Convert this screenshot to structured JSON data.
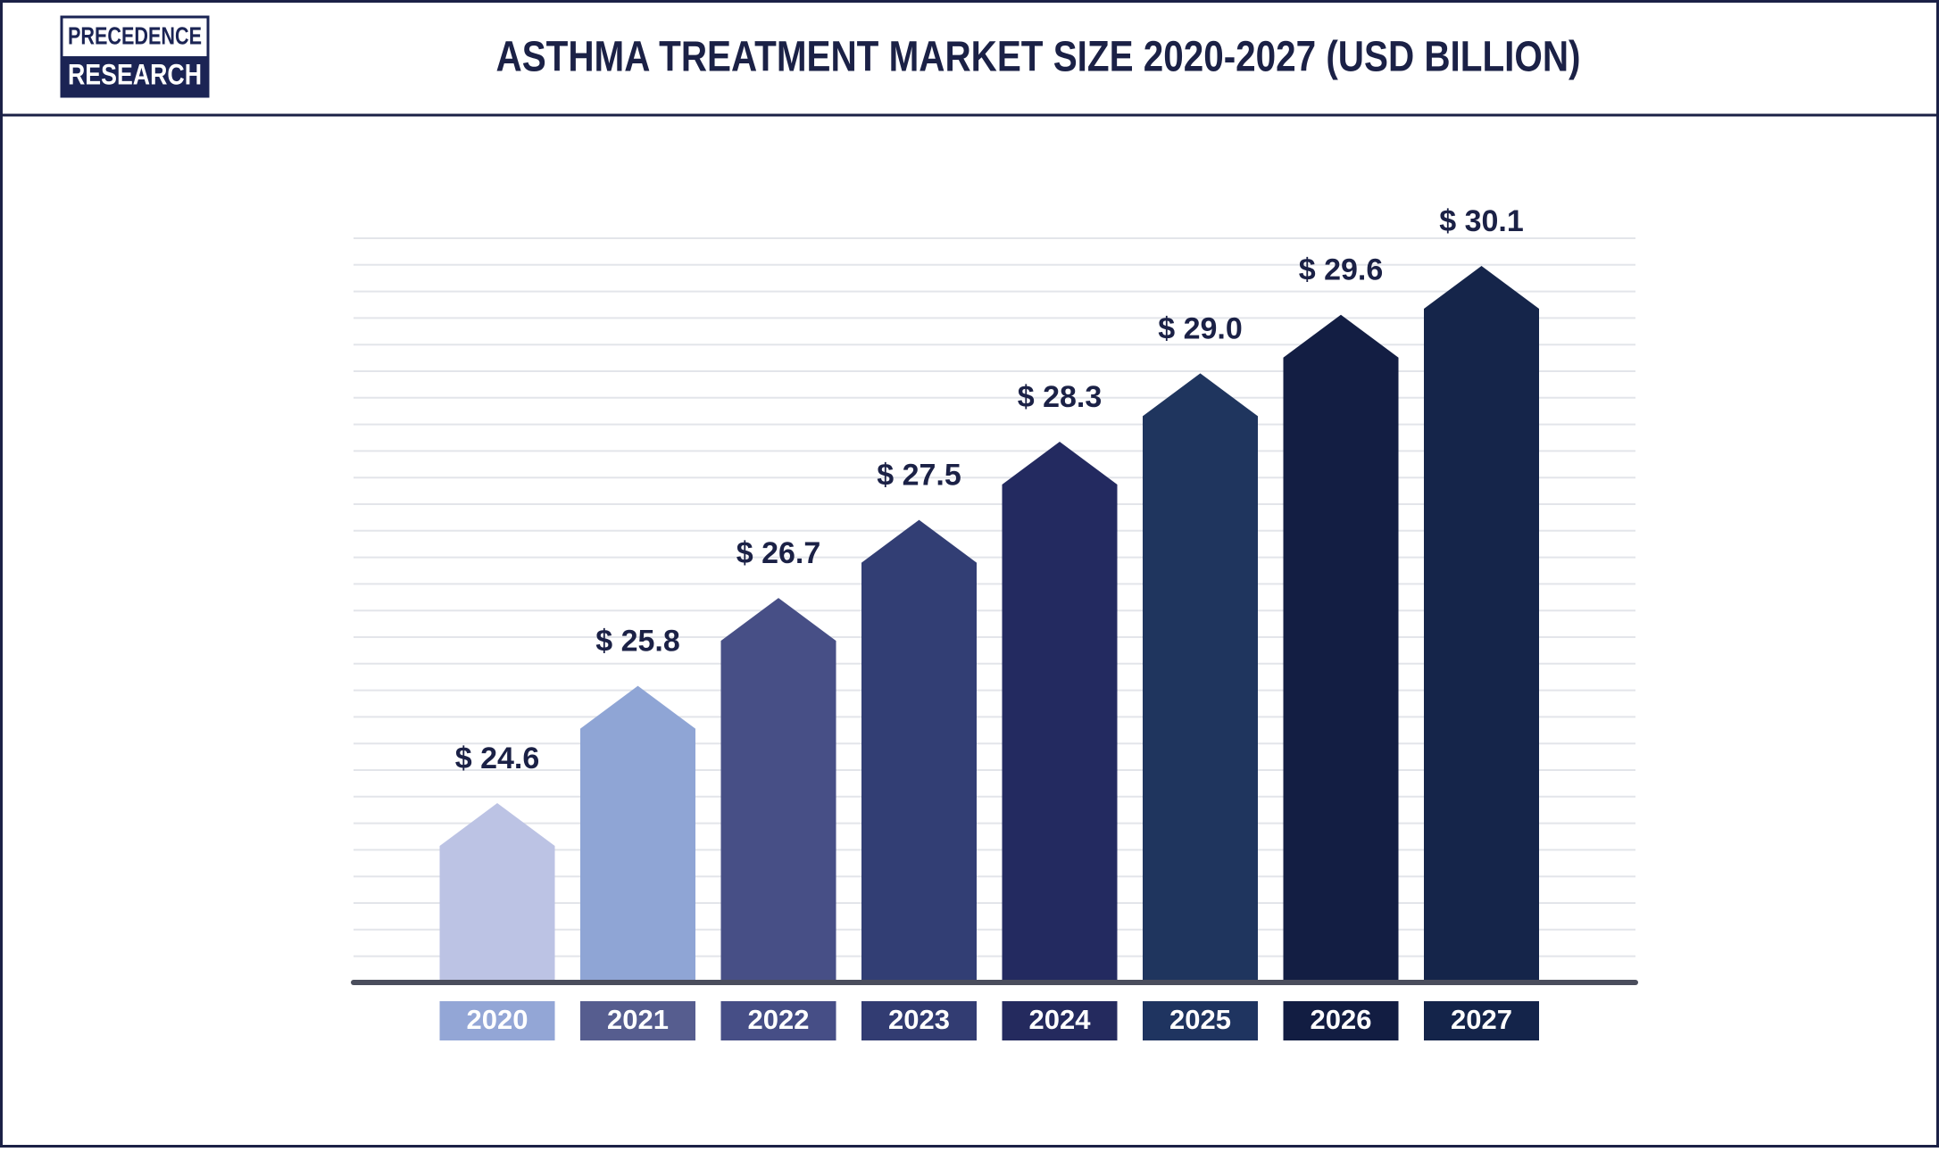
{
  "logo": {
    "line1": "PRECEDENCE",
    "line2": "RESEARCH"
  },
  "chart_data": {
    "type": "arrow-bar",
    "title": "ASTHMA TREATMENT MARKET SIZE 2020-2027 (USD BILLION)",
    "categories": [
      "2020",
      "2021",
      "2022",
      "2023",
      "2024",
      "2025",
      "2026",
      "2027"
    ],
    "values": [
      24.6,
      25.8,
      26.7,
      27.5,
      28.3,
      29.0,
      29.6,
      30.1
    ],
    "value_labels": [
      "$ 24.6",
      "$ 25.8",
      "$ 26.7",
      "$ 27.5",
      "$ 28.3",
      "$ 29.0",
      "$ 29.6",
      "$ 30.1"
    ],
    "colors": [
      "#bcc3e4",
      "#8fa5d5",
      "#474f86",
      "#323e74",
      "#232a60",
      "#1f355e",
      "#131e43",
      "#15254a"
    ],
    "label_colors": [
      "#93a6d6",
      "#565d8f",
      "#464e86",
      "#323c72",
      "#242a5e",
      "#1f3460",
      "#121d42",
      "#14244a"
    ],
    "grid": true
  }
}
